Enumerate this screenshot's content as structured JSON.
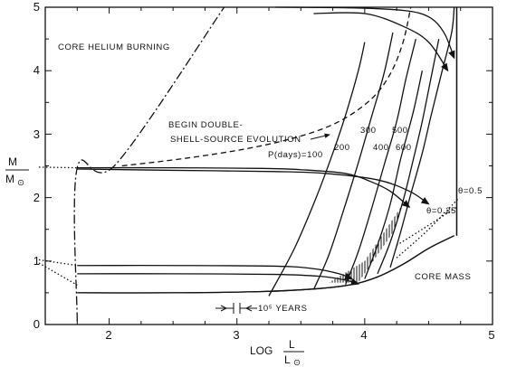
{
  "chart_data": {
    "type": "line",
    "title": "",
    "xlabel": {
      "main": "LOG",
      "num": "L",
      "den": "L",
      "sun": "⊙"
    },
    "ylabel": {
      "num": "M",
      "den": "M",
      "sun": "⊙"
    },
    "xlim": [
      1.5,
      5
    ],
    "ylim": [
      0,
      5
    ],
    "xticks": [
      2,
      3,
      4,
      5
    ],
    "yticks": [
      0,
      1,
      2,
      3,
      4,
      5
    ],
    "grid": false,
    "annotations": {
      "core_helium": "CORE HELIUM BURNING",
      "double_shell_1": "BEGIN DOUBLE-",
      "double_shell_2": "SHELL-SOURCE EVOLUTION",
      "core_mass": "CORE MASS",
      "years": "10⁵ YEARS",
      "p100": "P(days)=100",
      "p200": "200",
      "p300": "300",
      "p400": "400",
      "p500": "500",
      "p600": "600",
      "theta05": "θ=0.5",
      "theta025": "θ=0.25"
    },
    "series": [
      {
        "style": "dash-dot",
        "points": [
          [
            1.75,
            0.05
          ],
          [
            1.75,
            2.47
          ],
          [
            2.05,
            2.52
          ],
          [
            2.9,
            5.0
          ]
        ]
      },
      {
        "style": "dashed",
        "points": [
          [
            2.1,
            2.5
          ],
          [
            2.6,
            2.62
          ],
          [
            3.1,
            2.78
          ],
          [
            3.5,
            2.97
          ],
          [
            3.8,
            3.2
          ],
          [
            4.05,
            3.55
          ],
          [
            4.2,
            3.95
          ],
          [
            4.3,
            4.45
          ],
          [
            4.36,
            5.0
          ]
        ]
      },
      {
        "style": "dotted",
        "points": [
          [
            1.45,
            2.48
          ],
          [
            1.75,
            2.47
          ]
        ]
      },
      {
        "style": "dotted",
        "points": [
          [
            1.45,
            1.02
          ],
          [
            1.75,
            0.93
          ]
        ]
      },
      {
        "style": "dotted",
        "points": [
          [
            1.45,
            0.97
          ],
          [
            1.75,
            0.62
          ]
        ]
      },
      {
        "style": "dotted",
        "points": [
          [
            4.25,
            1.25
          ],
          [
            4.45,
            1.5
          ],
          [
            4.72,
            1.85
          ]
        ]
      },
      {
        "style": "dotted",
        "points": [
          [
            4.25,
            1.05
          ],
          [
            4.5,
            1.5
          ],
          [
            4.74,
            2.0
          ]
        ]
      },
      {
        "style": "hatched",
        "points": [
          [
            1.75,
            0.5
          ],
          [
            2.5,
            0.5
          ],
          [
            3.2,
            0.52
          ],
          [
            3.6,
            0.56
          ],
          [
            3.9,
            0.63
          ],
          [
            4.1,
            0.75
          ],
          [
            4.3,
            0.95
          ],
          [
            4.5,
            1.2
          ],
          [
            4.7,
            1.4
          ]
        ]
      },
      {
        "style": "hatched",
        "points": [
          [
            4.72,
            1.4
          ],
          [
            4.72,
            5.0
          ]
        ]
      },
      {
        "style": "evolution",
        "points": [
          [
            1.75,
            2.47
          ],
          [
            2.5,
            2.47
          ],
          [
            3.2,
            2.46
          ],
          [
            3.5,
            2.44
          ],
          [
            3.85,
            2.38
          ],
          [
            4.05,
            2.25
          ],
          [
            4.2,
            2.1
          ],
          [
            4.35,
            1.85
          ]
        ]
      },
      {
        "style": "evolution",
        "points": [
          [
            1.75,
            2.45
          ],
          [
            2.5,
            2.43
          ],
          [
            3.3,
            2.41
          ],
          [
            3.7,
            2.38
          ],
          [
            4.1,
            2.28
          ],
          [
            4.35,
            2.1
          ],
          [
            4.5,
            1.9
          ]
        ]
      },
      {
        "style": "evolution",
        "points": [
          [
            1.75,
            0.93
          ],
          [
            2.5,
            0.93
          ],
          [
            3.3,
            0.92
          ],
          [
            3.6,
            0.88
          ],
          [
            3.8,
            0.8
          ],
          [
            3.9,
            0.72
          ]
        ]
      },
      {
        "style": "evolution",
        "points": [
          [
            1.75,
            0.8
          ],
          [
            2.5,
            0.8
          ],
          [
            3.3,
            0.79
          ],
          [
            3.65,
            0.76
          ],
          [
            3.85,
            0.7
          ],
          [
            3.95,
            0.64
          ]
        ]
      },
      {
        "style": "evolution",
        "points": [
          [
            3.3,
            5.0
          ],
          [
            3.9,
            4.99
          ],
          [
            4.3,
            4.95
          ],
          [
            4.5,
            4.85
          ],
          [
            4.62,
            4.6
          ],
          [
            4.7,
            4.2
          ]
        ]
      },
      {
        "style": "evolution",
        "points": [
          [
            3.6,
            4.9
          ],
          [
            4.0,
            4.9
          ],
          [
            4.3,
            4.7
          ],
          [
            4.5,
            4.45
          ],
          [
            4.65,
            4.0
          ]
        ]
      },
      {
        "style": "period",
        "points": [
          [
            3.25,
            0.45
          ],
          [
            3.45,
            1.2
          ],
          [
            3.62,
            2.0
          ],
          [
            3.75,
            2.7
          ],
          [
            3.85,
            3.3
          ],
          [
            3.95,
            4.0
          ],
          [
            4.0,
            4.45
          ]
        ]
      },
      {
        "style": "period",
        "points": [
          [
            3.6,
            0.55
          ],
          [
            3.72,
            1.1
          ],
          [
            3.85,
            1.9
          ],
          [
            3.95,
            2.55
          ],
          [
            4.05,
            3.25
          ],
          [
            4.15,
            3.95
          ],
          [
            4.22,
            4.6
          ]
        ]
      },
      {
        "style": "period",
        "points": [
          [
            3.85,
            0.63
          ],
          [
            3.95,
            1.15
          ],
          [
            4.05,
            1.8
          ],
          [
            4.15,
            2.5
          ],
          [
            4.25,
            3.2
          ],
          [
            4.32,
            3.85
          ],
          [
            4.4,
            4.5
          ]
        ]
      },
      {
        "style": "period",
        "points": [
          [
            4.0,
            0.72
          ],
          [
            4.1,
            1.25
          ],
          [
            4.2,
            1.9
          ],
          [
            4.28,
            2.6
          ],
          [
            4.38,
            3.35
          ],
          [
            4.45,
            4.0
          ]
        ]
      },
      {
        "style": "period",
        "points": [
          [
            4.1,
            0.8
          ],
          [
            4.2,
            1.3
          ],
          [
            4.3,
            1.95
          ],
          [
            4.38,
            2.6
          ],
          [
            4.45,
            3.2
          ],
          [
            4.52,
            3.9
          ],
          [
            4.58,
            4.5
          ]
        ]
      },
      {
        "style": "period",
        "points": [
          [
            4.2,
            0.9
          ],
          [
            4.28,
            1.45
          ],
          [
            4.36,
            2.05
          ],
          [
            4.45,
            2.7
          ],
          [
            4.52,
            3.3
          ],
          [
            4.6,
            3.95
          ],
          [
            4.68,
            4.6
          ],
          [
            4.7,
            5.0
          ]
        ]
      }
    ]
  }
}
